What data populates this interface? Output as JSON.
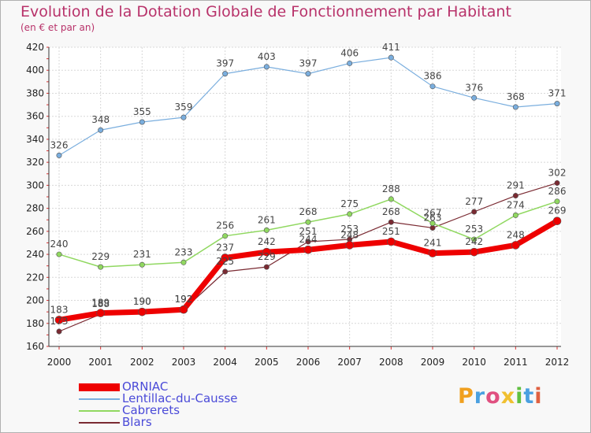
{
  "title": "Evolution de la Dotation Globale de Fonctionnement par Habitant",
  "subtitle": "(en € et par an)",
  "logo": {
    "letters": [
      "P",
      "r",
      "o",
      "x",
      "i",
      "t",
      "i"
    ],
    "colors": [
      "#f0a020",
      "#4aa0e0",
      "#e05080",
      "#f0c030",
      "#60c040",
      "#4aa0e0",
      "#e06040"
    ]
  },
  "chart_data": {
    "type": "line",
    "title": "Evolution de la Dotation Globale de Fonctionnement par Habitant",
    "subtitle": "(en € et par an)",
    "xlabel": "",
    "ylabel": "",
    "x": [
      "2000",
      "2001",
      "2002",
      "2003",
      "2004",
      "2005",
      "2006",
      "2007",
      "2008",
      "2009",
      "2010",
      "2011",
      "2012"
    ],
    "ylim": [
      160,
      420
    ],
    "yticks": [
      160,
      180,
      200,
      220,
      240,
      260,
      280,
      300,
      320,
      340,
      360,
      380,
      400,
      420
    ],
    "grid": true,
    "legend_position": "bottom-left",
    "series": [
      {
        "name": "Blars",
        "color": "#7a2a32",
        "values": [
          173,
          188,
          190,
          192,
          225,
          229,
          251,
          253,
          268,
          263,
          277,
          291,
          302
        ]
      },
      {
        "name": "Cabrerets",
        "color": "#90d860",
        "values": [
          240,
          229,
          231,
          233,
          256,
          261,
          268,
          275,
          288,
          267,
          253,
          274,
          286
        ]
      },
      {
        "name": "Lentillac-du-Causse",
        "color": "#7aaede",
        "values": [
          326,
          348,
          355,
          359,
          397,
          403,
          397,
          406,
          411,
          386,
          376,
          368,
          371
        ]
      },
      {
        "name": "ORNIAC",
        "color": "#ee0000",
        "values": [
          183,
          189,
          190,
          192,
          237,
          242,
          244,
          248,
          251,
          241,
          242,
          248,
          269
        ]
      }
    ],
    "legend": [
      "ORNIAC",
      "Lentillac-du-Causse",
      "Cabrerets",
      "Blars"
    ]
  }
}
